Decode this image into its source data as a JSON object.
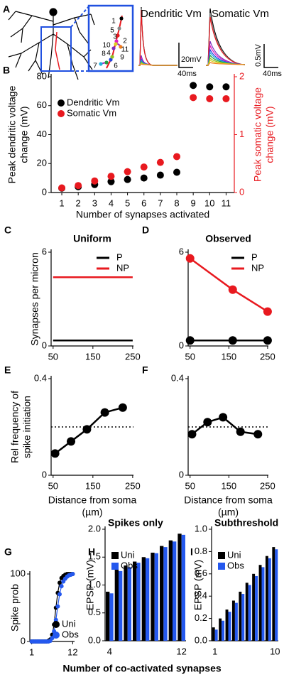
{
  "chart_data": [
    {
      "type": "illustration",
      "panel": "A",
      "trace_titles": [
        "Dendritic Vm",
        "Somatic Vm"
      ],
      "scale_bars": [
        "20mV",
        "40ms",
        "0.5mV",
        "40ms"
      ],
      "synapse_labels": [
        "1",
        "2",
        "3",
        "4",
        "5",
        "6",
        "7",
        "8",
        "9",
        "10",
        "11"
      ]
    },
    {
      "type": "scatter",
      "panel": "B",
      "xlabel": "Number of synapses activated",
      "ylabel": [
        "Peak dendritic voltage",
        "change (mV)"
      ],
      "y2label": [
        "Peak somatic voltage",
        "change (mV)"
      ],
      "y2color": "#e8191f",
      "x": [
        1,
        2,
        3,
        4,
        5,
        6,
        7,
        8,
        9,
        10,
        11
      ],
      "xlim": [
        0.35,
        11.5
      ],
      "xticks": [
        1,
        2,
        3,
        4,
        5,
        6,
        7,
        8,
        9,
        10,
        11
      ],
      "ylim": [
        0,
        80
      ],
      "yticks": [
        0,
        20,
        40,
        60,
        80
      ],
      "y2lim": [
        0,
        2
      ],
      "y2ticks": [
        0,
        1,
        2
      ],
      "legend": "upper left",
      "series": [
        {
          "name": "Dendritic Vm",
          "color": "#000000",
          "values": [
            3,
            4,
            5.5,
            7.5,
            9,
            10,
            12,
            14,
            74,
            73,
            73
          ]
        },
        {
          "name": "Somatic Vm",
          "color": "#e8191f",
          "axis": "y2",
          "values": [
            0.08,
            0.12,
            0.2,
            0.28,
            0.36,
            0.44,
            0.52,
            0.62,
            1.64,
            1.62,
            1.62
          ]
        }
      ]
    },
    {
      "type": "line",
      "panel": "C",
      "title": "Uniform",
      "ylabel": "Synapses per micron",
      "xlim": [
        45,
        252
      ],
      "xticks": [
        50,
        150,
        250
      ],
      "ylim": [
        0,
        6
      ],
      "yticks": [
        0,
        6
      ],
      "legend": "upper right",
      "markers": false,
      "series": [
        {
          "name": "P",
          "color": "#000000",
          "x": [
            50,
            250
          ],
          "values": [
            0.35,
            0.35
          ]
        },
        {
          "name": "NP",
          "color": "#e8191f",
          "x": [
            50,
            250
          ],
          "values": [
            4.4,
            4.4
          ]
        }
      ]
    },
    {
      "type": "line",
      "panel": "D",
      "title": "Observed",
      "xlim": [
        45,
        252
      ],
      "xticks": [
        50,
        150,
        250
      ],
      "ylim": [
        0,
        6
      ],
      "yticks": [
        0,
        6
      ],
      "legend": "upper right",
      "markers": true,
      "series": [
        {
          "name": "P",
          "color": "#000000",
          "x": [
            50,
            160,
            250
          ],
          "values": [
            0.35,
            0.35,
            0.35
          ]
        },
        {
          "name": "NP",
          "color": "#e8191f",
          "x": [
            50,
            160,
            250
          ],
          "values": [
            5.6,
            3.6,
            2.2
          ]
        }
      ]
    },
    {
      "type": "line",
      "panel": "E",
      "xlabel": [
        "Distance from soma",
        "(µm)"
      ],
      "ylabel": [
        "Rel frequency of",
        "spike initiation"
      ],
      "xlim": [
        45,
        252
      ],
      "xticks": [
        50,
        150,
        250
      ],
      "ylim": [
        0,
        0.4
      ],
      "yticks": [
        0,
        0.4
      ],
      "reference_line": 0.2,
      "markers": true,
      "series": [
        {
          "color": "#000000",
          "x": [
            55,
            95,
            135,
            180,
            225
          ],
          "values": [
            0.09,
            0.14,
            0.19,
            0.26,
            0.28
          ]
        }
      ]
    },
    {
      "type": "line",
      "panel": "F",
      "xlabel": [
        "Distance from soma",
        "(µm)"
      ],
      "xlim": [
        45,
        252
      ],
      "xticks": [
        50,
        150,
        250
      ],
      "ylim": [
        0,
        0.4
      ],
      "yticks": [
        0,
        0.4
      ],
      "reference_line": 0.2,
      "markers": true,
      "series": [
        {
          "color": "#000000",
          "x": [
            55,
            95,
            135,
            180,
            225
          ],
          "values": [
            0.17,
            0.22,
            0.24,
            0.18,
            0.17
          ]
        }
      ]
    },
    {
      "type": "line",
      "panel": "G",
      "ylabel": "Spike prob",
      "xlabel": "Number of co-activated synapses",
      "xlim": [
        0.5,
        12.5
      ],
      "xticks": [
        1,
        12
      ],
      "ylim": [
        0,
        100
      ],
      "yticks": [
        0,
        100
      ],
      "legend": "lower right",
      "markers": true,
      "series": [
        {
          "name": "Uni",
          "color": "#000000",
          "x": [
            1,
            1.5,
            2,
            2.5,
            3,
            3.5,
            4,
            4.5,
            5,
            5.5,
            6,
            6.5,
            7,
            7.5,
            8,
            8.5,
            9,
            9.5,
            10,
            10.5,
            11,
            11.5,
            12
          ],
          "values": [
            0,
            0,
            0,
            0,
            0,
            0,
            0,
            0,
            0,
            1,
            3,
            10,
            25,
            50,
            72,
            87,
            94,
            97,
            99,
            100,
            100,
            100,
            100
          ]
        },
        {
          "name": "Obs",
          "color": "#2458ee",
          "x": [
            1,
            1.5,
            2,
            2.5,
            3,
            3.5,
            4,
            4.5,
            5,
            5.5,
            6,
            6.5,
            7,
            7.5,
            8,
            8.5,
            9,
            9.5,
            10,
            10.5,
            11,
            11.5,
            12
          ],
          "values": [
            0,
            0,
            0,
            0,
            0,
            0,
            0,
            0,
            0,
            0,
            1,
            5,
            15,
            32,
            52,
            70,
            82,
            89,
            93,
            96,
            98,
            99,
            100
          ]
        }
      ]
    },
    {
      "type": "bar",
      "panel": "H",
      "title": "Spikes only",
      "ylabel": "EPSP (mV)",
      "categories": [
        "4",
        null,
        null,
        null,
        null,
        null,
        null,
        null,
        "12"
      ],
      "ylim": [
        0,
        2
      ],
      "yticks": [
        {
          "value": 0,
          "label": "0.0"
        },
        0.5,
        {
          "value": 1,
          "label": "1.0"
        },
        1.5,
        {
          "value": 2,
          "label": "2.0"
        }
      ],
      "legend": "upper left",
      "series": [
        {
          "name": "Uni",
          "color": "#000000",
          "values": [
            0.88,
            1.28,
            1.35,
            1.42,
            1.5,
            1.58,
            1.7,
            1.8,
            1.92
          ]
        },
        {
          "name": "Obs",
          "color": "#2458ee",
          "values": [
            0.85,
            1.25,
            1.32,
            1.4,
            1.48,
            1.57,
            1.68,
            1.78,
            1.9
          ]
        }
      ]
    },
    {
      "type": "bar",
      "panel": "I",
      "title": "Subthreshold",
      "ylabel": "EPSP (mV)",
      "categories": [
        "1",
        null,
        null,
        null,
        null,
        null,
        null,
        null,
        null,
        "10"
      ],
      "ylim": [
        0,
        1
      ],
      "yticks": [
        {
          "value": 0,
          "label": "0.0"
        },
        0.2,
        0.4,
        0.6,
        0.8,
        {
          "value": 1,
          "label": "1.0"
        }
      ],
      "legend": "upper left",
      "series": [
        {
          "name": "Uni",
          "color": "#000000",
          "values": [
            0.12,
            0.2,
            0.28,
            0.36,
            0.44,
            0.52,
            0.6,
            0.68,
            0.76,
            0.84
          ]
        },
        {
          "name": "Obs",
          "color": "#2458ee",
          "values": [
            0.1,
            0.18,
            0.26,
            0.34,
            0.42,
            0.5,
            0.58,
            0.66,
            0.74,
            0.82
          ]
        }
      ]
    }
  ]
}
